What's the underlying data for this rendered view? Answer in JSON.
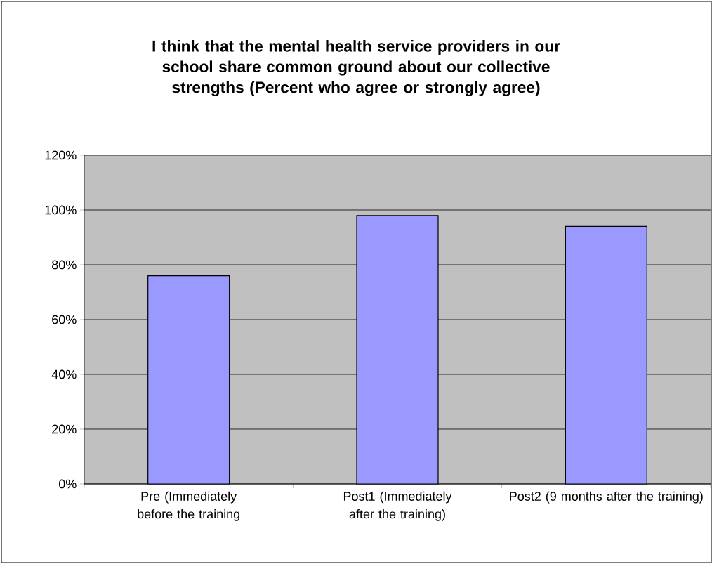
{
  "chart_data": {
    "type": "bar",
    "title": "I think that the mental health service providers in our school share common ground about our collective strengths (Percent who agree or strongly agree)",
    "categories": [
      "Pre (Immediately before the training",
      "Post1 (Immediately after the training)",
      "Post2 (9 months after the training)"
    ],
    "values": [
      76,
      98,
      94
    ],
    "color": "#9999ff",
    "ylim": [
      0,
      120
    ],
    "yticks": [
      {
        "value": 0,
        "label": "0%"
      },
      {
        "value": 20,
        "label": "20%"
      },
      {
        "value": 40,
        "label": "40%"
      },
      {
        "value": 60,
        "label": "60%"
      },
      {
        "value": 80,
        "label": "80%"
      },
      {
        "value": 100,
        "label": "100%"
      },
      {
        "value": 120,
        "label": "120%"
      }
    ],
    "grid": true
  }
}
